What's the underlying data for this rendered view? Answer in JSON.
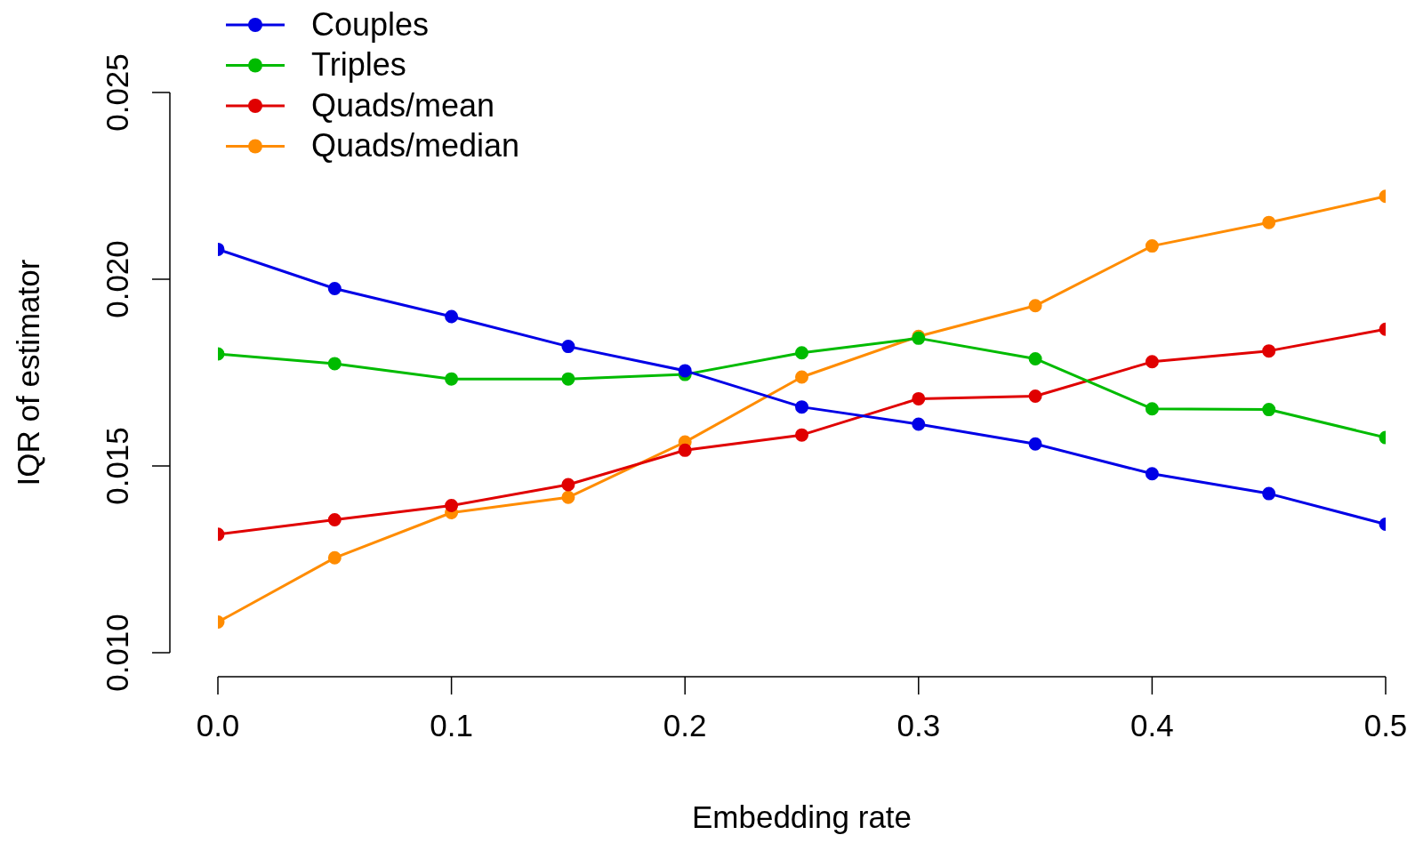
{
  "chart_data": {
    "type": "line",
    "xlabel": "Embedding rate",
    "ylabel": "IQR of estimator",
    "x": [
      0,
      0.05,
      0.1,
      0.15,
      0.2,
      0.25,
      0.3,
      0.35,
      0.4,
      0.45,
      0.5
    ],
    "xlim": [
      0,
      0.5
    ],
    "xticks": [
      {
        "value": 0,
        "label": "0.0"
      },
      0.1,
      0.2,
      0.3,
      0.4,
      0.5
    ],
    "ylim": [
      0.01,
      0.025
    ],
    "yticks": [
      {
        "value": 0.01,
        "label": "0.010"
      },
      0.015,
      {
        "value": 0.02,
        "label": "0.020"
      },
      0.025
    ],
    "legend": "top left",
    "marker": "circle",
    "line_style": "solid",
    "series": [
      {
        "name": "Couples",
        "color": "#0000e6",
        "values": [
          0.0208,
          0.01975,
          0.019,
          0.0182,
          0.01755,
          0.01658,
          0.01612,
          0.01559,
          0.01479,
          0.01426,
          0.01344
        ]
      },
      {
        "name": "Triples",
        "color": "#00bb00",
        "values": [
          0.018,
          0.01774,
          0.01733,
          0.01733,
          0.01745,
          0.01803,
          0.01842,
          0.01787,
          0.01653,
          0.01651,
          0.01576
        ]
      },
      {
        "name": "Quads/mean",
        "color": "#e00000",
        "values": [
          0.01317,
          0.01356,
          0.01394,
          0.0145,
          0.01542,
          0.01583,
          0.0168,
          0.01687,
          0.01779,
          0.01808,
          0.01866
        ]
      },
      {
        "name": "Quads/median",
        "color": "#ff8c00",
        "values": [
          0.01082,
          0.01254,
          0.01375,
          0.01416,
          0.01564,
          0.01738,
          0.01847,
          0.01929,
          0.02089,
          0.02152,
          0.02222
        ]
      }
    ]
  }
}
